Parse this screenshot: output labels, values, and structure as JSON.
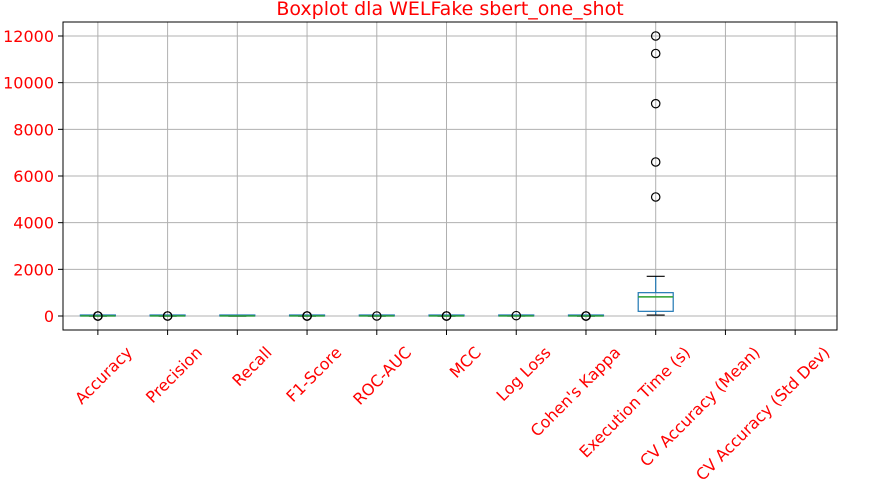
{
  "chart_data": {
    "type": "boxplot",
    "title": "Boxplot dla WELFake sbert_one_shot",
    "xlabel": "",
    "ylabel": "",
    "ylim": [
      -600,
      12600
    ],
    "yticks": [
      0,
      2000,
      4000,
      6000,
      8000,
      10000,
      12000
    ],
    "grid": true,
    "label_color": "#ff0000",
    "box_color": "#1f77b4",
    "median_color": "#2ca02c",
    "categories": [
      "Accuracy",
      "Precision",
      "Recall",
      "F1-Score",
      "ROC-AUC",
      "MCC",
      "Log Loss",
      "Cohen's Kappa",
      "Execution Time (s)",
      "CV Accuracy (Mean)",
      "CV Accuracy (Std Dev)"
    ],
    "boxes": [
      {
        "name": "Accuracy",
        "whislo": 0.4,
        "q1": 0.6,
        "med": 0.8,
        "q3": 0.9,
        "whishi": 1.0,
        "fliers": [
          0.1,
          0.2,
          0.3
        ]
      },
      {
        "name": "Precision",
        "whislo": 0.4,
        "q1": 0.6,
        "med": 0.8,
        "q3": 0.9,
        "whishi": 1.0,
        "fliers": [
          0.1,
          0.2
        ]
      },
      {
        "name": "Recall",
        "whislo": 0.0,
        "q1": 0.4,
        "med": 0.8,
        "q3": 0.95,
        "whishi": 1.0,
        "fliers": []
      },
      {
        "name": "F1-Score",
        "whislo": 0.4,
        "q1": 0.6,
        "med": 0.8,
        "q3": 0.9,
        "whishi": 1.0,
        "fliers": [
          0.0,
          0.1,
          0.2
        ]
      },
      {
        "name": "ROC-AUC",
        "whislo": 0.6,
        "q1": 0.7,
        "med": 0.85,
        "q3": 0.9,
        "whishi": 1.0,
        "fliers": [
          0.4
        ]
      },
      {
        "name": "MCC",
        "whislo": 0.0,
        "q1": 0.4,
        "med": 0.6,
        "q3": 0.8,
        "whishi": 1.0,
        "fliers": [
          -0.2,
          -0.1,
          0.1
        ]
      },
      {
        "name": "Log Loss",
        "whislo": 0.2,
        "q1": 1.0,
        "med": 3.0,
        "q3": 6.0,
        "whishi": 10.0,
        "fliers": [
          15
        ]
      },
      {
        "name": "Cohen's Kappa",
        "whislo": 0.0,
        "q1": 0.4,
        "med": 0.6,
        "q3": 0.8,
        "whishi": 1.0,
        "fliers": [
          -0.2,
          -0.1,
          0.1
        ]
      },
      {
        "name": "Execution Time (s)",
        "whislo": 40,
        "q1": 200,
        "med": 820,
        "q3": 1000,
        "whishi": 1700,
        "fliers": [
          5100,
          6600,
          9100,
          11250,
          12000
        ]
      },
      {
        "name": "CV Accuracy (Mean)",
        "whislo": null,
        "q1": null,
        "med": null,
        "q3": null,
        "whishi": null,
        "fliers": []
      },
      {
        "name": "CV Accuracy (Std Dev)",
        "whislo": null,
        "q1": null,
        "med": null,
        "q3": null,
        "whishi": null,
        "fliers": []
      }
    ]
  }
}
